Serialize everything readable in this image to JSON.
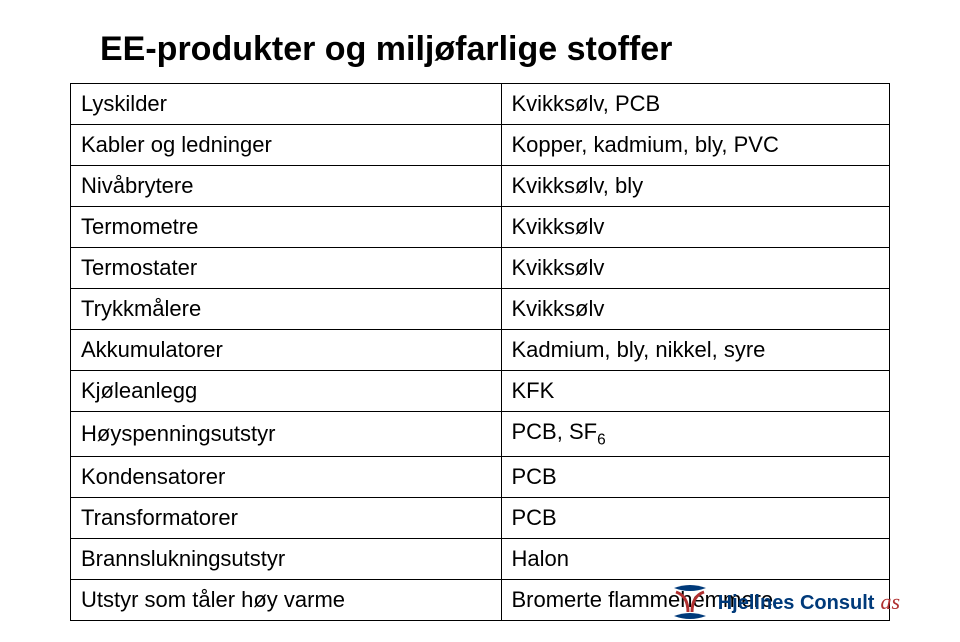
{
  "title": "EE-produkter og miljøfarlige stoffer",
  "title_fontsize": 34,
  "title_color": "#000000",
  "table": {
    "type": "table",
    "border_color": "#000000",
    "cell_fontsize": 22,
    "cell_color": "#000000",
    "column_widths": [
      "50%",
      "50%"
    ],
    "rows": [
      [
        "Lyskilder",
        "Kvikksølv, PCB"
      ],
      [
        "Kabler og ledninger",
        "Kopper, kadmium, bly, PVC"
      ],
      [
        "Nivåbrytere",
        "Kvikksølv, bly"
      ],
      [
        "Termometre",
        "Kvikksølv"
      ],
      [
        "Termostater",
        "Kvikksølv"
      ],
      [
        "Trykkmålere",
        "Kvikksølv"
      ],
      [
        "Akkumulatorer",
        "Kadmium, bly, nikkel, syre"
      ],
      [
        "Kjøleanlegg",
        "KFK"
      ],
      [
        "Høyspenningsutstyr",
        "PCB, SF₆"
      ],
      [
        "Kondensatorer",
        "PCB"
      ],
      [
        "Transformatorer",
        "PCB"
      ],
      [
        "Brannslukningsutstyr",
        "Halon"
      ],
      [
        "Utstyr som tåler høy varme",
        "Bromerte flammehemmere"
      ]
    ]
  },
  "logo": {
    "name": "Hjellnes Consult",
    "suffix": "as",
    "name_color": "#003a7a",
    "suffix_color": "#b03030",
    "mark_color1": "#003a7a",
    "mark_color2": "#b03030"
  },
  "background_color": "#ffffff"
}
